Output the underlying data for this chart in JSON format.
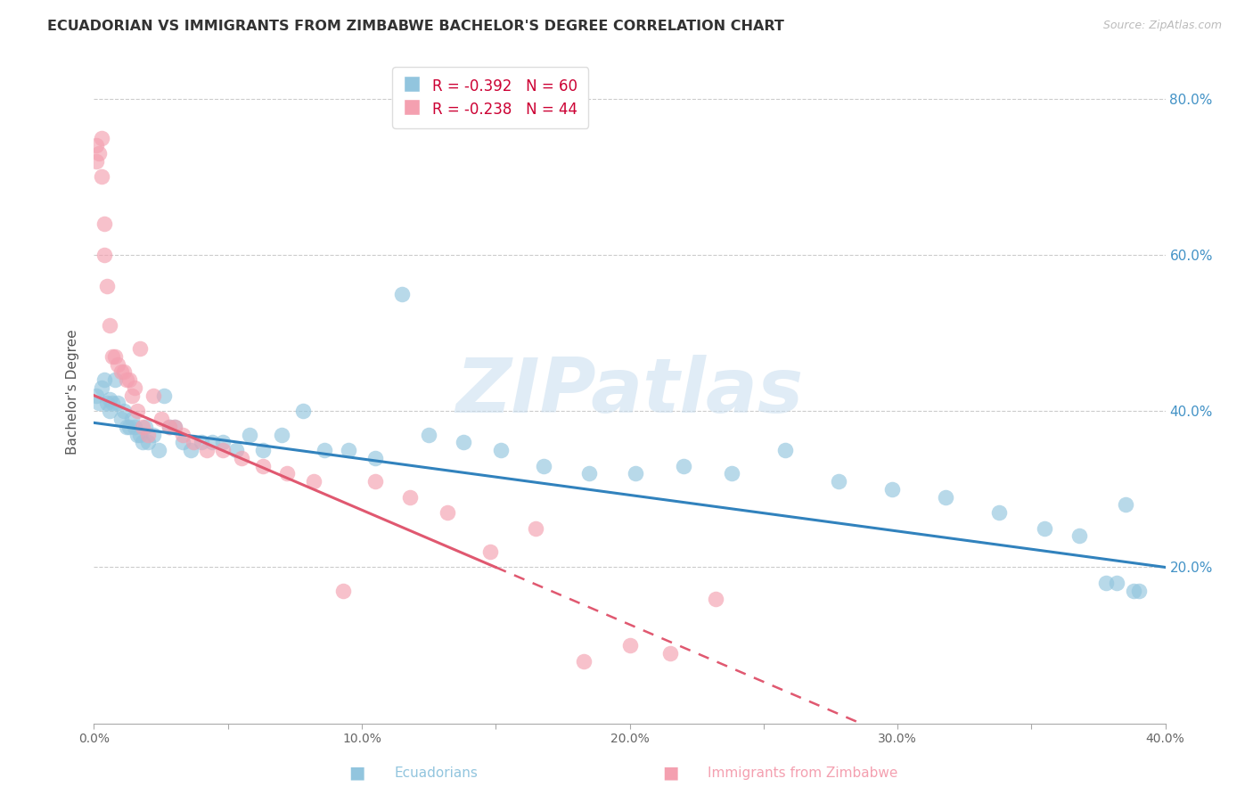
{
  "title": "ECUADORIAN VS IMMIGRANTS FROM ZIMBABWE BACHELOR'S DEGREE CORRELATION CHART",
  "source": "Source: ZipAtlas.com",
  "xlabel_blue": "Ecuadorians",
  "xlabel_pink": "Immigrants from Zimbabwe",
  "ylabel": "Bachelor's Degree",
  "blue_r": -0.392,
  "blue_n": 60,
  "pink_r": -0.238,
  "pink_n": 44,
  "blue_color": "#92c5de",
  "pink_color": "#f4a0b0",
  "blue_line_color": "#3182bd",
  "pink_line_color": "#e05870",
  "right_axis_color": "#4292c6",
  "watermark": "ZIPatlas",
  "xlim": [
    0.0,
    0.4
  ],
  "ylim": [
    0.0,
    0.85
  ],
  "right_yticks": [
    0.2,
    0.4,
    0.6,
    0.8
  ],
  "right_yticklabels": [
    "20.0%",
    "40.0%",
    "60.0%",
    "80.0%"
  ],
  "grid_yticks": [
    0.2,
    0.4,
    0.6,
    0.8
  ],
  "xticks": [
    0.0,
    0.05,
    0.1,
    0.15,
    0.2,
    0.25,
    0.3,
    0.35,
    0.4
  ],
  "xticklabels": [
    "0.0%",
    "",
    "10.0%",
    "",
    "20.0%",
    "",
    "30.0%",
    "",
    "40.0%"
  ],
  "blue_x": [
    0.001,
    0.002,
    0.003,
    0.004,
    0.005,
    0.006,
    0.006,
    0.007,
    0.008,
    0.009,
    0.01,
    0.011,
    0.012,
    0.013,
    0.014,
    0.015,
    0.016,
    0.017,
    0.018,
    0.019,
    0.02,
    0.022,
    0.024,
    0.026,
    0.028,
    0.03,
    0.033,
    0.036,
    0.04,
    0.044,
    0.048,
    0.053,
    0.058,
    0.063,
    0.07,
    0.078,
    0.086,
    0.095,
    0.105,
    0.115,
    0.125,
    0.138,
    0.152,
    0.168,
    0.185,
    0.202,
    0.22,
    0.238,
    0.258,
    0.278,
    0.298,
    0.318,
    0.338,
    0.355,
    0.368,
    0.378,
    0.382,
    0.385,
    0.388,
    0.39
  ],
  "blue_y": [
    0.42,
    0.41,
    0.43,
    0.44,
    0.41,
    0.415,
    0.4,
    0.41,
    0.44,
    0.41,
    0.39,
    0.4,
    0.38,
    0.38,
    0.39,
    0.38,
    0.37,
    0.37,
    0.36,
    0.38,
    0.36,
    0.37,
    0.35,
    0.42,
    0.38,
    0.38,
    0.36,
    0.35,
    0.36,
    0.36,
    0.36,
    0.35,
    0.37,
    0.35,
    0.37,
    0.4,
    0.35,
    0.35,
    0.34,
    0.55,
    0.37,
    0.36,
    0.35,
    0.33,
    0.32,
    0.32,
    0.33,
    0.32,
    0.35,
    0.31,
    0.3,
    0.29,
    0.27,
    0.25,
    0.24,
    0.18,
    0.18,
    0.28,
    0.17,
    0.17
  ],
  "pink_x": [
    0.001,
    0.001,
    0.002,
    0.003,
    0.003,
    0.004,
    0.004,
    0.005,
    0.006,
    0.007,
    0.008,
    0.009,
    0.01,
    0.011,
    0.012,
    0.013,
    0.014,
    0.015,
    0.016,
    0.017,
    0.018,
    0.02,
    0.022,
    0.025,
    0.028,
    0.03,
    0.033,
    0.037,
    0.042,
    0.048,
    0.055,
    0.063,
    0.072,
    0.082,
    0.093,
    0.105,
    0.118,
    0.132,
    0.148,
    0.165,
    0.183,
    0.2,
    0.215,
    0.232
  ],
  "pink_y": [
    0.74,
    0.72,
    0.73,
    0.7,
    0.75,
    0.64,
    0.6,
    0.56,
    0.51,
    0.47,
    0.47,
    0.46,
    0.45,
    0.45,
    0.44,
    0.44,
    0.42,
    0.43,
    0.4,
    0.48,
    0.38,
    0.37,
    0.42,
    0.39,
    0.38,
    0.38,
    0.37,
    0.36,
    0.35,
    0.35,
    0.34,
    0.33,
    0.32,
    0.31,
    0.17,
    0.31,
    0.29,
    0.27,
    0.22,
    0.25,
    0.08,
    0.1,
    0.09,
    0.16
  ]
}
